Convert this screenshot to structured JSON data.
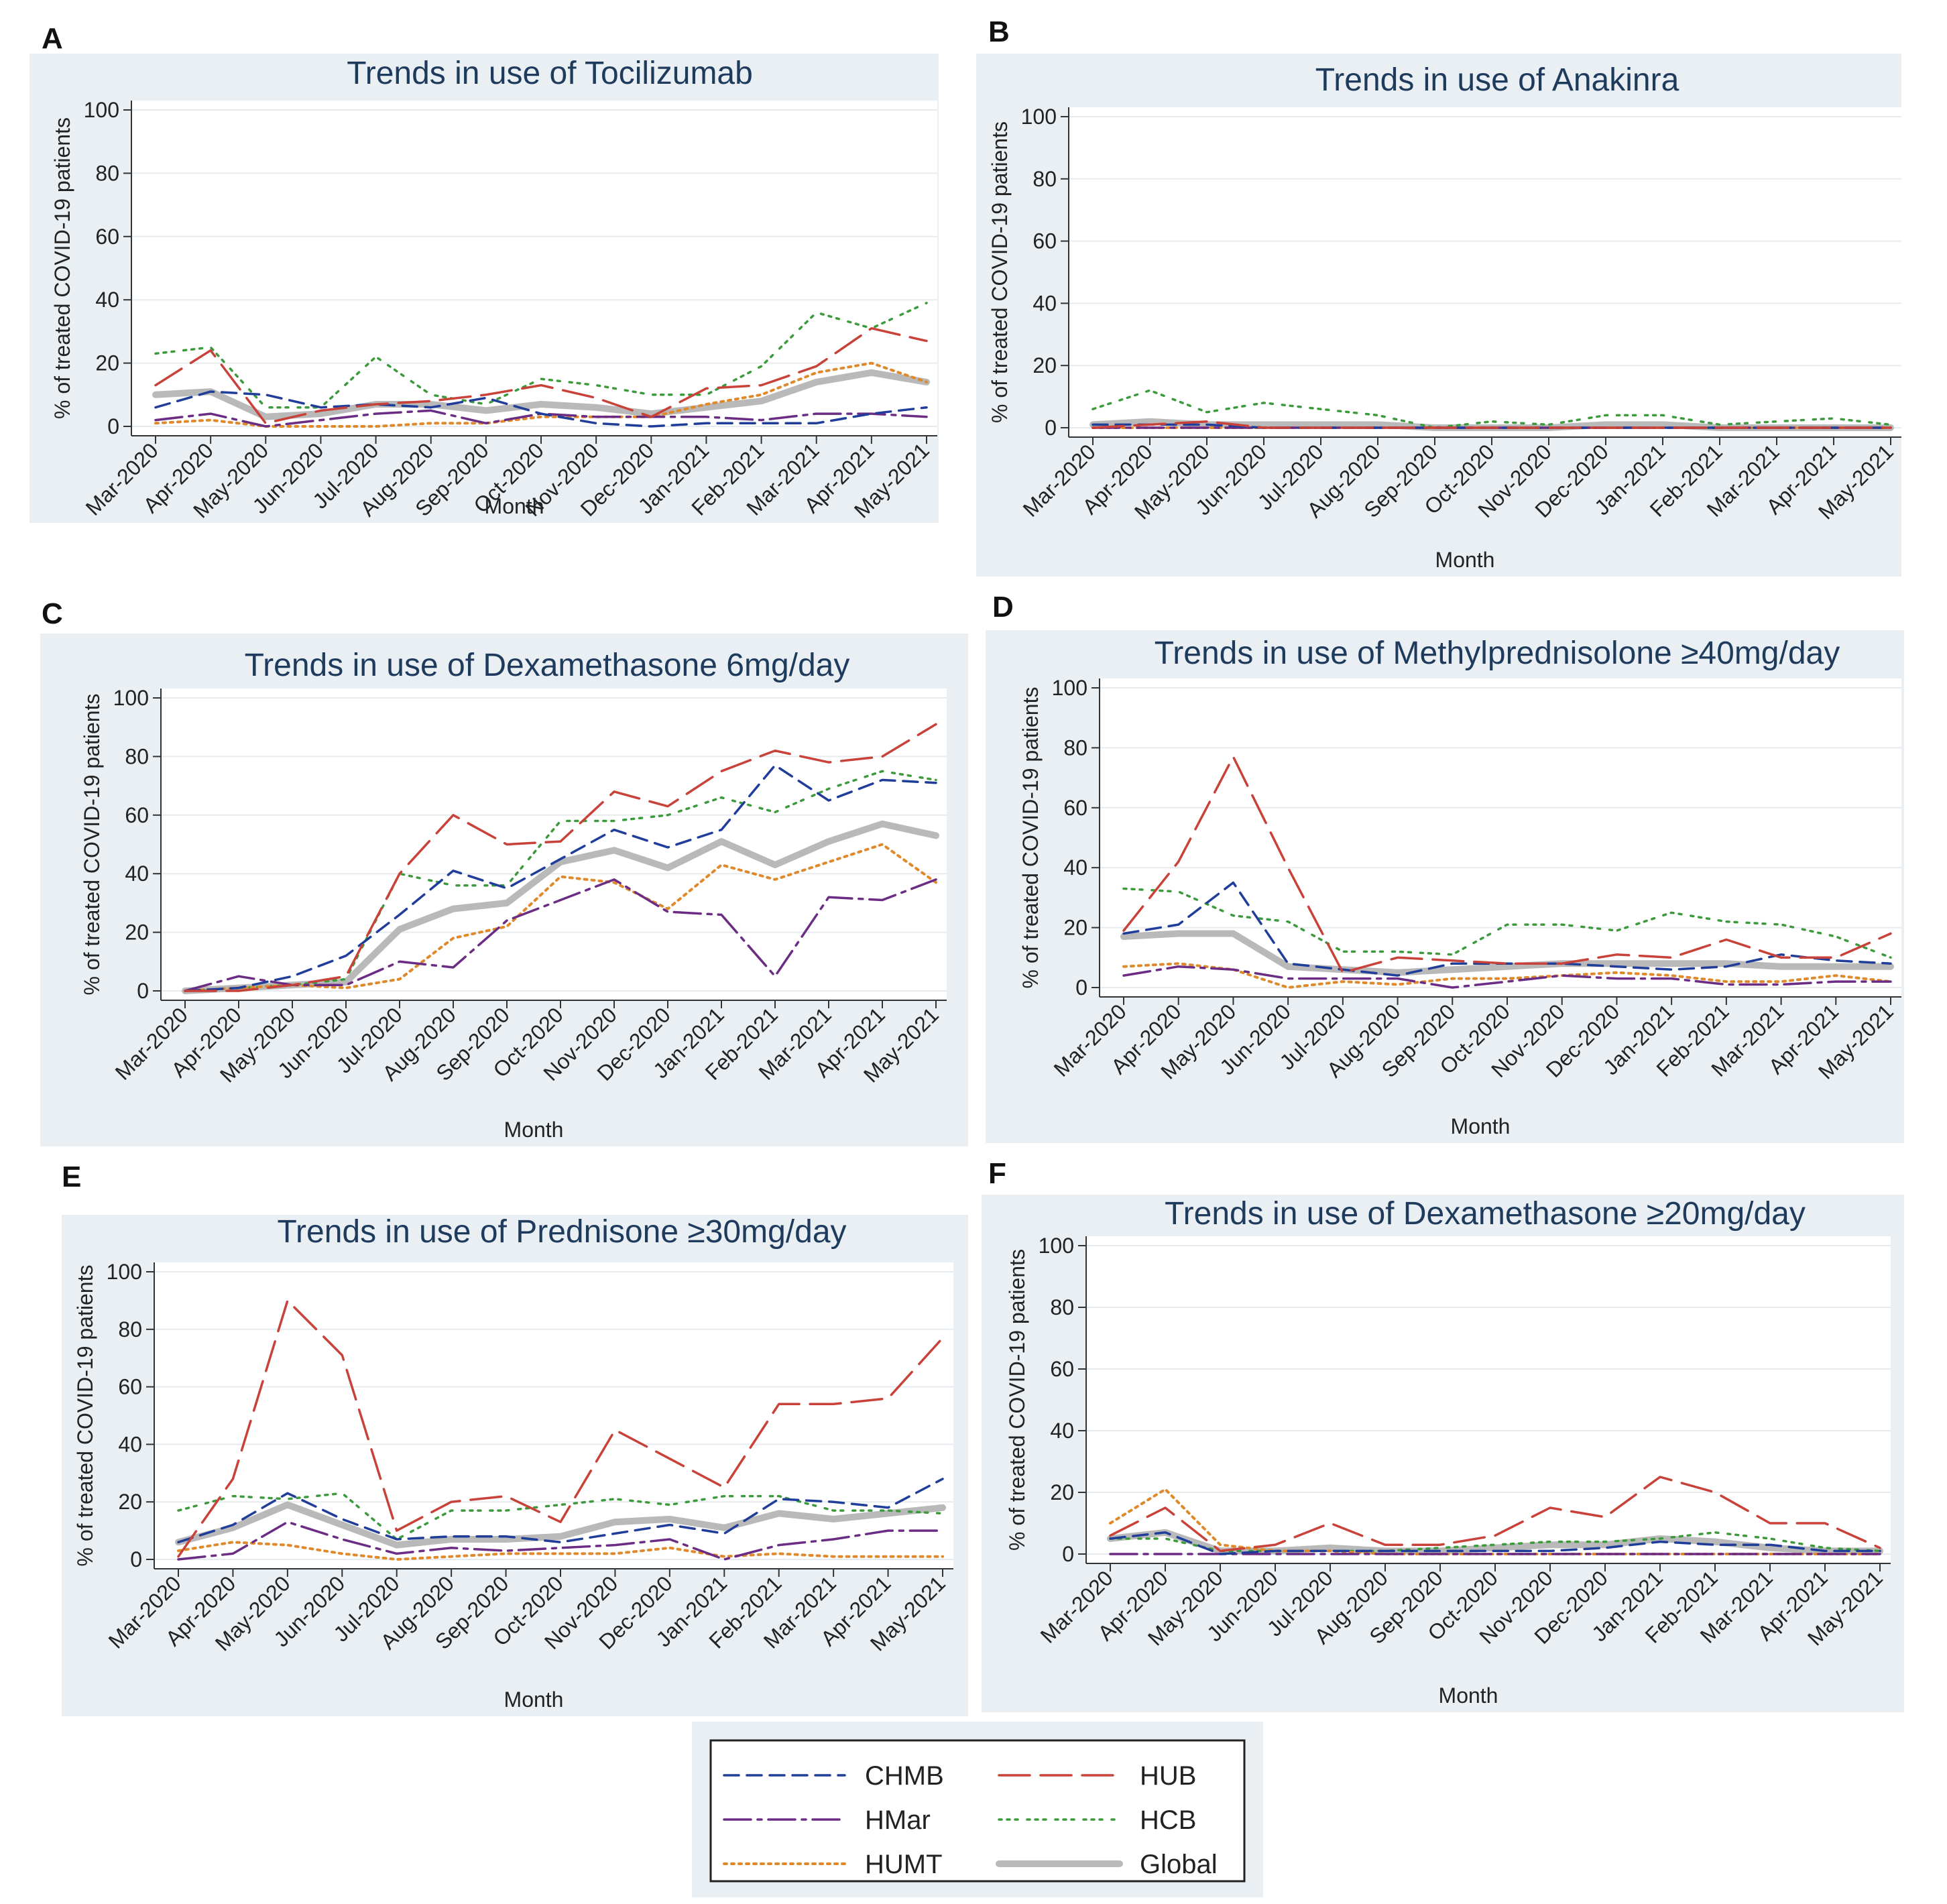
{
  "colors": {
    "CHMB": "#1f3d99",
    "HUB": "#c8423a",
    "HMar": "#6b2c84",
    "HCB": "#3c9a3c",
    "HUMT": "#e0892a",
    "Global": "#b9b9b9",
    "panel_bg": "#e9eff3",
    "plot_bg": "#ffffff",
    "title": "#1e3a5c"
  },
  "legend": {
    "items": [
      {
        "key": "CHMB",
        "label": "CHMB"
      },
      {
        "key": "HUB",
        "label": "HUB"
      },
      {
        "key": "HMar",
        "label": "HMar"
      },
      {
        "key": "HCB",
        "label": "HCB"
      },
      {
        "key": "HUMT",
        "label": "HUMT"
      },
      {
        "key": "Global",
        "label": "Global"
      }
    ]
  },
  "chart_data": [
    {
      "panel": "A",
      "type": "line",
      "title": "Trends in use of  Tocilizumab",
      "xlabel": "Month",
      "ylabel": "% of treated COVID-19 patients",
      "ylim": [
        0,
        100
      ],
      "yticks": [
        0,
        20,
        40,
        60,
        80,
        100
      ],
      "categories": [
        "Mar-2020",
        "Apr-2020",
        "May-2020",
        "Jun-2020",
        "Jul-2020",
        "Aug-2020",
        "Sep-2020",
        "Oct-2020",
        "Nov-2020",
        "Dec-2020",
        "Jan-2021",
        "Feb-2021",
        "Mar-2021",
        "Apr-2021",
        "May-2021"
      ],
      "series": [
        {
          "name": "CHMB",
          "values": [
            6,
            11,
            10,
            6,
            7,
            6,
            9,
            4,
            1,
            0,
            1,
            1,
            1,
            4,
            6
          ]
        },
        {
          "name": "HUB",
          "values": [
            13,
            24,
            1,
            5,
            7,
            8,
            10,
            13,
            9,
            3,
            12,
            13,
            19,
            31,
            27
          ]
        },
        {
          "name": "HMar",
          "values": [
            2,
            4,
            0,
            2,
            4,
            5,
            1,
            4,
            3,
            3,
            3,
            2,
            4,
            4,
            3
          ]
        },
        {
          "name": "HCB",
          "values": [
            23,
            25,
            6,
            6,
            22,
            10,
            7,
            15,
            13,
            10,
            10,
            19,
            36,
            31,
            39
          ]
        },
        {
          "name": "HUMT",
          "values": [
            1,
            2,
            0,
            0,
            0,
            1,
            1,
            3,
            3,
            3,
            7,
            10,
            17,
            20,
            14
          ]
        },
        {
          "name": "Global",
          "values": [
            10,
            11,
            3,
            4,
            7,
            7,
            5,
            7,
            6,
            4,
            6,
            8,
            14,
            17,
            14
          ]
        }
      ]
    },
    {
      "panel": "B",
      "type": "line",
      "title": "Trends in use of  Anakinra",
      "xlabel": "Month",
      "ylabel": "% of treated COVID-19 patients",
      "ylim": [
        0,
        100
      ],
      "yticks": [
        0,
        20,
        40,
        60,
        80,
        100
      ],
      "categories": [
        "Mar-2020",
        "Apr-2020",
        "May-2020",
        "Jun-2020",
        "Jul-2020",
        "Aug-2020",
        "Sep-2020",
        "Oct-2020",
        "Nov-2020",
        "Dec-2020",
        "Jan-2021",
        "Feb-2021",
        "Mar-2021",
        "Apr-2021",
        "May-2021"
      ],
      "series": [
        {
          "name": "CHMB",
          "values": [
            1,
            1,
            1,
            0,
            0,
            0,
            0,
            0,
            0,
            0,
            0,
            0,
            0,
            0,
            0
          ]
        },
        {
          "name": "HUB",
          "values": [
            0,
            1,
            2,
            0,
            0,
            0,
            0,
            0,
            0,
            0,
            0,
            0,
            0,
            0,
            0
          ]
        },
        {
          "name": "HMar",
          "values": [
            0,
            0,
            0,
            0,
            0,
            0,
            0,
            0,
            0,
            0,
            0,
            0,
            0,
            0,
            0
          ]
        },
        {
          "name": "HCB",
          "values": [
            6,
            12,
            5,
            8,
            6,
            4,
            0,
            2,
            1,
            4,
            4,
            1,
            2,
            3,
            1
          ]
        },
        {
          "name": "HUMT",
          "values": [
            0,
            0,
            0,
            0,
            0,
            0,
            0,
            0,
            0,
            0,
            0,
            0,
            0,
            0,
            0
          ]
        },
        {
          "name": "Global",
          "values": [
            1,
            2,
            1,
            1,
            1,
            1,
            0,
            0,
            0,
            1,
            1,
            0,
            0,
            0,
            0
          ]
        }
      ]
    },
    {
      "panel": "C",
      "type": "line",
      "title": "Trends in use of Dexamethasone 6mg/day",
      "xlabel": "Month",
      "ylabel": "% of treated COVID-19 patients",
      "ylim": [
        0,
        100
      ],
      "yticks": [
        0,
        20,
        40,
        60,
        80,
        100
      ],
      "categories": [
        "Mar-2020",
        "Apr-2020",
        "May-2020",
        "Jun-2020",
        "Jul-2020",
        "Aug-2020",
        "Sep-2020",
        "Oct-2020",
        "Nov-2020",
        "Dec-2020",
        "Jan-2021",
        "Feb-2021",
        "Mar-2021",
        "Apr-2021",
        "May-2021"
      ],
      "series": [
        {
          "name": "CHMB",
          "values": [
            0,
            1,
            5,
            12,
            26,
            41,
            35,
            45,
            55,
            49,
            55,
            77,
            65,
            72,
            71
          ]
        },
        {
          "name": "HUB",
          "values": [
            0,
            0,
            2,
            5,
            40,
            60,
            50,
            51,
            68,
            63,
            75,
            82,
            78,
            80,
            91
          ]
        },
        {
          "name": "HMar",
          "values": [
            0,
            5,
            2,
            2,
            10,
            8,
            24,
            31,
            38,
            27,
            26,
            5,
            32,
            31,
            38
          ]
        },
        {
          "name": "HCB",
          "values": [
            0,
            1,
            2,
            4,
            40,
            36,
            36,
            58,
            58,
            60,
            66,
            61,
            69,
            75,
            72
          ]
        },
        {
          "name": "HUMT",
          "values": [
            0,
            1,
            2,
            1,
            4,
            18,
            22,
            39,
            37,
            28,
            43,
            38,
            44,
            50,
            37
          ]
        },
        {
          "name": "Global",
          "values": [
            0,
            1,
            2,
            3,
            21,
            28,
            30,
            44,
            48,
            42,
            51,
            43,
            51,
            57,
            53
          ]
        }
      ]
    },
    {
      "panel": "D",
      "type": "line",
      "title": "Trends in use of Methylprednisolone ≥40mg/day",
      "xlabel": "Month",
      "ylabel": "% of treated COVID-19 patients",
      "ylim": [
        0,
        100
      ],
      "yticks": [
        0,
        20,
        40,
        60,
        80,
        100
      ],
      "categories": [
        "Mar-2020",
        "Apr-2020",
        "May-2020",
        "Jun-2020",
        "Jul-2020",
        "Aug-2020",
        "Sep-2020",
        "Oct-2020",
        "Nov-2020",
        "Dec-2020",
        "Jan-2021",
        "Feb-2021",
        "Mar-2021",
        "Apr-2021",
        "May-2021"
      ],
      "series": [
        {
          "name": "CHMB",
          "values": [
            18,
            21,
            35,
            8,
            6,
            4,
            8,
            8,
            8,
            7,
            6,
            7,
            11,
            9,
            8
          ]
        },
        {
          "name": "HUB",
          "values": [
            19,
            42,
            77,
            40,
            5,
            10,
            9,
            8,
            8,
            11,
            10,
            16,
            10,
            10,
            18
          ]
        },
        {
          "name": "HMar",
          "values": [
            4,
            7,
            6,
            3,
            3,
            3,
            0,
            2,
            4,
            3,
            3,
            1,
            1,
            2,
            2
          ]
        },
        {
          "name": "HCB",
          "values": [
            33,
            32,
            24,
            22,
            12,
            12,
            11,
            21,
            21,
            19,
            25,
            22,
            21,
            17,
            10
          ]
        },
        {
          "name": "HUMT",
          "values": [
            7,
            8,
            6,
            0,
            2,
            1,
            3,
            3,
            4,
            5,
            4,
            2,
            2,
            4,
            2
          ]
        },
        {
          "name": "Global",
          "values": [
            17,
            18,
            18,
            7,
            6,
            5,
            6,
            7,
            8,
            8,
            8,
            8,
            7,
            7,
            7
          ]
        }
      ]
    },
    {
      "panel": "E",
      "type": "line",
      "title": "Trends in use of  Prednisone ≥30mg/day",
      "xlabel": "Month",
      "ylabel": "% of treated COVID-19 patients",
      "ylim": [
        0,
        100
      ],
      "yticks": [
        0,
        20,
        40,
        60,
        80,
        100
      ],
      "categories": [
        "Mar-2020",
        "Apr-2020",
        "May-2020",
        "Jun-2020",
        "Jul-2020",
        "Aug-2020",
        "Sep-2020",
        "Oct-2020",
        "Nov-2020",
        "Dec-2020",
        "Jan-2021",
        "Feb-2021",
        "Mar-2021",
        "Apr-2021",
        "May-2021"
      ],
      "series": [
        {
          "name": "CHMB",
          "values": [
            6,
            12,
            23,
            14,
            7,
            8,
            8,
            6,
            9,
            12,
            9,
            21,
            20,
            18,
            28
          ]
        },
        {
          "name": "HUB",
          "values": [
            1,
            28,
            90,
            71,
            10,
            20,
            22,
            13,
            45,
            35,
            25,
            54,
            54,
            56,
            77
          ]
        },
        {
          "name": "HMar",
          "values": [
            0,
            2,
            13,
            7,
            2,
            4,
            3,
            4,
            5,
            7,
            0,
            5,
            7,
            10,
            10
          ]
        },
        {
          "name": "HCB",
          "values": [
            17,
            22,
            21,
            23,
            7,
            17,
            17,
            19,
            21,
            19,
            22,
            22,
            17,
            17,
            16
          ]
        },
        {
          "name": "HUMT",
          "values": [
            3,
            6,
            5,
            2,
            0,
            1,
            2,
            2,
            2,
            4,
            1,
            2,
            1,
            1,
            1
          ]
        },
        {
          "name": "Global",
          "values": [
            6,
            11,
            19,
            12,
            5,
            7,
            7,
            8,
            13,
            14,
            11,
            16,
            14,
            16,
            18
          ]
        }
      ]
    },
    {
      "panel": "F",
      "type": "line",
      "title": "Trends in use of Dexamethasone ≥20mg/day",
      "xlabel": "Month",
      "ylabel": "% of treated COVID-19 patients",
      "ylim": [
        0,
        100
      ],
      "yticks": [
        0,
        20,
        40,
        60,
        80,
        100
      ],
      "categories": [
        "Mar-2020",
        "Apr-2020",
        "May-2020",
        "Jun-2020",
        "Jul-2020",
        "Aug-2020",
        "Sep-2020",
        "Oct-2020",
        "Nov-2020",
        "Dec-2020",
        "Jan-2021",
        "Feb-2021",
        "Mar-2021",
        "Apr-2021",
        "May-2021"
      ],
      "series": [
        {
          "name": "CHMB",
          "values": [
            5,
            7,
            0,
            1,
            1,
            1,
            1,
            1,
            1,
            2,
            4,
            3,
            3,
            1,
            1
          ]
        },
        {
          "name": "HUB",
          "values": [
            6,
            15,
            1,
            3,
            10,
            3,
            3,
            6,
            15,
            12,
            25,
            20,
            10,
            10,
            2
          ]
        },
        {
          "name": "HMar",
          "values": [
            0,
            0,
            0,
            0,
            0,
            0,
            0,
            0,
            0,
            0,
            0,
            0,
            0,
            0,
            0
          ]
        },
        {
          "name": "HCB",
          "values": [
            5,
            5,
            1,
            1,
            1,
            1,
            2,
            3,
            4,
            4,
            5,
            7,
            5,
            2,
            1
          ]
        },
        {
          "name": "HUMT",
          "values": [
            10,
            21,
            3,
            1,
            1,
            0,
            0,
            0,
            0,
            0,
            0,
            0,
            0,
            0,
            0
          ]
        },
        {
          "name": "Global",
          "values": [
            5,
            7,
            1,
            1,
            2,
            1,
            1,
            2,
            3,
            3,
            5,
            4,
            2,
            1,
            1
          ]
        }
      ]
    }
  ]
}
